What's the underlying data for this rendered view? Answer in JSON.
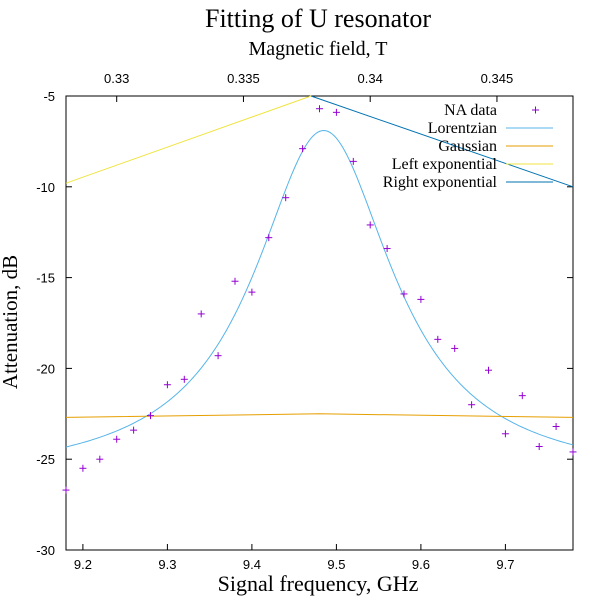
{
  "chart_data": {
    "type": "scatter",
    "title": "Fitting of U resonator",
    "xlabel": "Signal frequency, GHz",
    "ylabel": "Attenuation, dB",
    "x2label": "Magnetic field, T",
    "xlim": [
      9.18,
      9.78
    ],
    "ylim": [
      -30,
      -5
    ],
    "x2lim": [
      0.328,
      0.348
    ],
    "x_ticks": [
      "9.2",
      "9.3",
      "9.4",
      "9.5",
      "9.6",
      "9.7"
    ],
    "x2_ticks": [
      "0.33",
      "0.335",
      "0.34",
      "0.345"
    ],
    "y_ticks": [
      "-5",
      "-10",
      "-15",
      "-20",
      "-25",
      "-30"
    ],
    "grid": false,
    "legend_position": "top-right",
    "series": [
      {
        "name": "NA data",
        "kind": "points",
        "marker": "+",
        "color": "#9400d3",
        "x": [
          9.18,
          9.2,
          9.22,
          9.24,
          9.26,
          9.28,
          9.3,
          9.32,
          9.34,
          9.36,
          9.38,
          9.4,
          9.42,
          9.44,
          9.46,
          9.48,
          9.5,
          9.52,
          9.54,
          9.56,
          9.58,
          9.6,
          9.62,
          9.64,
          9.66,
          9.68,
          9.7,
          9.72,
          9.74,
          9.76,
          9.78
        ],
        "y": [
          -26.7,
          -25.5,
          -25.0,
          -23.9,
          -23.4,
          -22.6,
          -20.9,
          -20.6,
          -17.0,
          -19.3,
          -15.2,
          -15.8,
          -12.8,
          -10.6,
          -7.9,
          -5.7,
          -5.9,
          -8.6,
          -12.1,
          -13.4,
          -15.9,
          -16.2,
          -18.4,
          -18.9,
          -22.0,
          -20.1,
          -23.6,
          -21.5,
          -24.3,
          -23.2,
          -24.6
        ]
      },
      {
        "name": "Lorentzian",
        "kind": "line",
        "color": "#56b4e9",
        "function": "lorentzian",
        "params": {
          "center": 9.485,
          "fwhm": 0.2,
          "offset": -26.2,
          "amplitude": 19.3
        }
      },
      {
        "name": "Gaussian",
        "kind": "line",
        "color": "#e69f00",
        "x": [
          9.18,
          9.48,
          9.78
        ],
        "y": [
          -22.7,
          -22.5,
          -22.7
        ]
      },
      {
        "name": "Left exponential",
        "kind": "line",
        "color": "#f0e442",
        "x": [
          9.18,
          9.47
        ],
        "y": [
          -9.8,
          -5.0
        ]
      },
      {
        "name": "Right exponential",
        "kind": "line",
        "color": "#0072b2",
        "x": [
          9.47,
          9.78
        ],
        "y": [
          -5.0,
          -10.0
        ]
      }
    ]
  }
}
